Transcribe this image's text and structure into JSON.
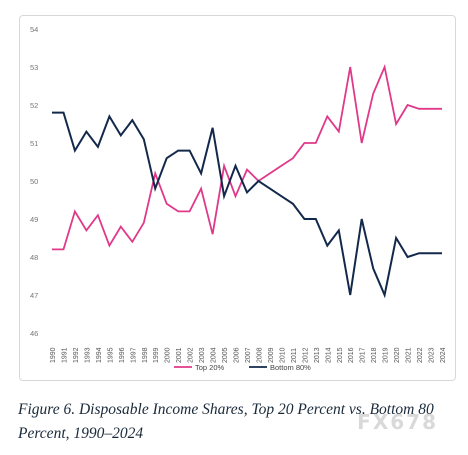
{
  "chart_data": {
    "type": "line",
    "title": "",
    "xlabel": "",
    "ylabel": "",
    "ylim": [
      46,
      54
    ],
    "ytick_labels": [
      "54",
      "53",
      "52",
      "51",
      "50",
      "49",
      "48",
      "47",
      "46"
    ],
    "x": [
      "1990",
      "1991",
      "1992",
      "1993",
      "1994",
      "1995",
      "1996",
      "1997",
      "1998",
      "1999",
      "2000",
      "2001",
      "2002",
      "2003",
      "2004",
      "2005",
      "2006",
      "2007",
      "2008",
      "2009",
      "2010",
      "2011",
      "2012",
      "2013",
      "2014",
      "2015",
      "2016",
      "2017",
      "2018",
      "2019",
      "2020",
      "2021",
      "2022",
      "2023",
      "2024"
    ],
    "series": [
      {
        "name": "Top 20%",
        "color": "#e0398a",
        "values": [
          48.2,
          48.2,
          49.2,
          48.7,
          49.1,
          48.3,
          48.8,
          48.4,
          48.9,
          50.2,
          49.4,
          49.2,
          49.2,
          49.8,
          48.6,
          50.4,
          49.6,
          50.3,
          50.0,
          50.2,
          50.4,
          50.6,
          51.0,
          51.0,
          51.7,
          51.3,
          53.0,
          51.0,
          52.3,
          53.0,
          51.5,
          52.0,
          51.9,
          51.9,
          51.9
        ]
      },
      {
        "name": "Bottom 80%",
        "color": "#13294b",
        "values": [
          51.8,
          51.8,
          50.8,
          51.3,
          50.9,
          51.7,
          51.2,
          51.6,
          51.1,
          49.8,
          50.6,
          50.8,
          50.8,
          50.2,
          51.4,
          49.6,
          50.4,
          49.7,
          50.0,
          49.8,
          49.6,
          49.4,
          49.0,
          49.0,
          48.3,
          48.7,
          47.0,
          49.0,
          47.7,
          47.0,
          48.5,
          48.0,
          48.1,
          48.1,
          48.1
        ]
      }
    ],
    "grid": false,
    "legend_position": "bottom-center"
  },
  "caption": "Figure 6. Disposable Income Shares, Top 20 Percent vs. Bottom 80 Percent, 1990–2024",
  "watermark": "FX678"
}
